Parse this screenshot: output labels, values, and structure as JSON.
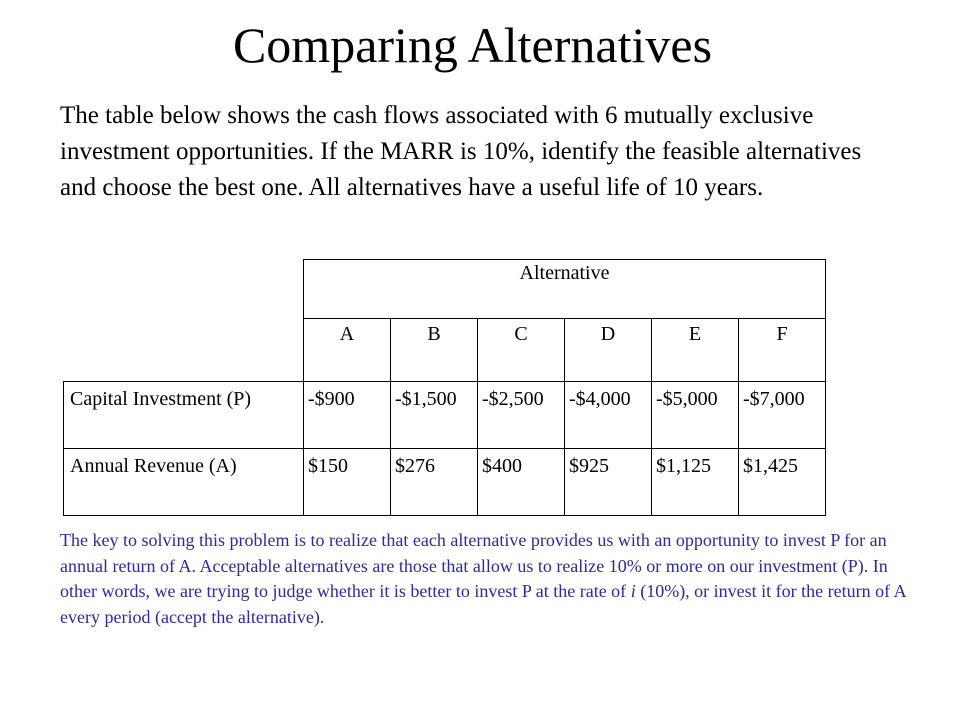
{
  "slide": {
    "title": "Comparing Alternatives",
    "intro": "The table below shows the cash flows associated with 6 mutually exclusive investment opportunities.  If the MARR is 10%, identify the feasible alternatives and choose the best one. All alternatives have a useful life of 10 years."
  },
  "table": {
    "group_header": "Alternative",
    "columns": [
      "A",
      "B",
      "C",
      "D",
      "E",
      "F"
    ],
    "rows": [
      {
        "label": "Capital Investment (P)",
        "values": [
          "-$900",
          "-$1,500",
          "-$2,500",
          "-$4,000",
          "-$5,000",
          "-$7,000"
        ]
      },
      {
        "label": "Annual Revenue (A)",
        "values": [
          "$150",
          "$276",
          "$400",
          "$925",
          "$1,125",
          "$1,425"
        ]
      }
    ]
  },
  "explanation": {
    "part1": "The key to solving this problem is to realize that each alternative provides us with an opportunity to invest P for an annual return of A.  Acceptable alternatives are those that allow us to realize 10% or more on our investment (P).  In other words, we are trying to judge whether it is better to invest P at the rate of ",
    "italic": "i",
    "part2": " (10%), or invest it for the return of A every period (accept the alternative)."
  },
  "colors": {
    "explanation_text": "#2b2b9c"
  }
}
